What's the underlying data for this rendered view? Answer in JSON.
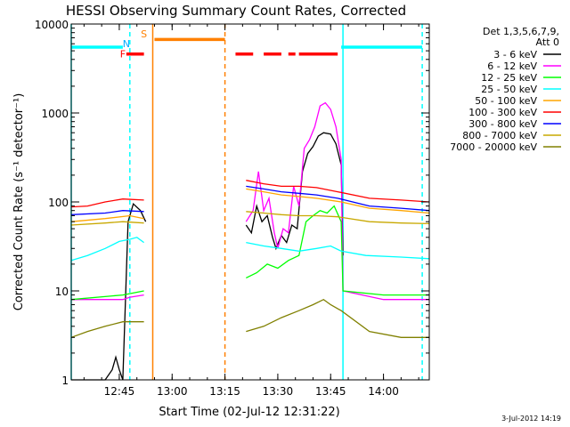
{
  "chart_data": {
    "type": "line",
    "title": "HESSI Observing Summary Count Rates, Corrected",
    "ylabel": "Corrected Count Rate (s⁻¹ detector⁻¹)",
    "xlabel": "Start Time (02-Jul-12 12:31:22)",
    "x_unit": "UT (02-Jul-2012)",
    "x_range": [
      "12:31:22",
      "14:13:00"
    ],
    "y_scale": "log",
    "ylim": [
      1,
      10000
    ],
    "x_ticks": [
      "12:45",
      "13:00",
      "13:15",
      "13:30",
      "13:45",
      "14:00"
    ],
    "y_ticks": [
      "1",
      "10",
      "100",
      "1000",
      "10000"
    ],
    "footer_date": "3-Jul-2012 14:19",
    "legend": {
      "header": [
        "Det 1,3,5,6,7,9,",
        "Att 0"
      ],
      "placement": "right"
    },
    "series": [
      {
        "name": "3 - 6 keV",
        "color": "#000000",
        "points": [
          [
            "12:31:22",
            1
          ],
          [
            "12:41:00",
            1
          ],
          [
            "12:43:00",
            1.3
          ],
          [
            "12:44:00",
            1.8
          ],
          [
            "12:45:00",
            1.3
          ],
          [
            "12:46:00",
            1
          ],
          [
            "12:47:30",
            60
          ],
          [
            "12:49:00",
            95
          ],
          [
            "12:51:00",
            80
          ],
          [
            "12:52:30",
            60
          ],
          [
            null,
            null
          ],
          [
            "13:21:00",
            55
          ],
          [
            "13:22:30",
            45
          ],
          [
            "13:24:00",
            90
          ],
          [
            "13:25:30",
            60
          ],
          [
            "13:27:00",
            70
          ],
          [
            "13:28:30",
            40
          ],
          [
            "13:29:30",
            30
          ],
          [
            "13:31:00",
            42
          ],
          [
            "13:32:30",
            35
          ],
          [
            "13:34:00",
            55
          ],
          [
            "13:35:30",
            50
          ],
          [
            "13:37:00",
            220
          ],
          [
            "13:38:30",
            350
          ],
          [
            "13:40:00",
            420
          ],
          [
            "13:41:30",
            550
          ],
          [
            "13:43:00",
            600
          ],
          [
            "13:45:00",
            580
          ],
          [
            "13:46:30",
            450
          ],
          [
            "13:48:00",
            260
          ],
          [
            "13:48:30",
            25
          ]
        ]
      },
      {
        "name": "6 - 12 keV",
        "color": "#ff00ff",
        "points": [
          [
            "12:31:22",
            8
          ],
          [
            "12:40:00",
            8
          ],
          [
            "12:46:00",
            8
          ],
          [
            "12:48:00",
            8.5
          ],
          [
            "12:52:00",
            9
          ],
          [
            null,
            null
          ],
          [
            "13:21:00",
            60
          ],
          [
            "13:23:00",
            80
          ],
          [
            "13:24:30",
            220
          ],
          [
            "13:26:00",
            80
          ],
          [
            "13:27:30",
            110
          ],
          [
            "13:29:00",
            45
          ],
          [
            "13:30:00",
            30
          ],
          [
            "13:31:30",
            50
          ],
          [
            "13:33:00",
            45
          ],
          [
            "13:34:30",
            150
          ],
          [
            "13:36:00",
            90
          ],
          [
            "13:37:30",
            400
          ],
          [
            "13:39:00",
            500
          ],
          [
            "13:40:30",
            700
          ],
          [
            "13:42:00",
            1200
          ],
          [
            "13:43:30",
            1300
          ],
          [
            "13:45:00",
            1100
          ],
          [
            "13:46:30",
            700
          ],
          [
            "13:48:00",
            300
          ],
          [
            "13:48:30",
            10
          ],
          [
            "14:00:00",
            8
          ],
          [
            "14:13:00",
            8
          ]
        ]
      },
      {
        "name": "12 - 25 keV",
        "color": "#00ff00",
        "points": [
          [
            "12:31:22",
            8
          ],
          [
            "12:46:00",
            9
          ],
          [
            "12:52:00",
            10
          ],
          [
            null,
            null
          ],
          [
            "13:21:00",
            14
          ],
          [
            "13:24:00",
            16
          ],
          [
            "13:27:00",
            20
          ],
          [
            "13:30:00",
            18
          ],
          [
            "13:33:00",
            22
          ],
          [
            "13:36:00",
            25
          ],
          [
            "13:38:00",
            60
          ],
          [
            "13:40:00",
            70
          ],
          [
            "13:42:00",
            80
          ],
          [
            "13:44:00",
            75
          ],
          [
            "13:46:00",
            90
          ],
          [
            "13:48:00",
            60
          ],
          [
            "13:48:30",
            10
          ],
          [
            "14:00:00",
            9
          ],
          [
            "14:13:00",
            9
          ]
        ]
      },
      {
        "name": "25 - 50 keV",
        "color": "#00ffff",
        "points": [
          [
            "12:31:22",
            22
          ],
          [
            "12:36:00",
            25
          ],
          [
            "12:41:00",
            30
          ],
          [
            "12:45:00",
            36
          ],
          [
            "12:48:00",
            38
          ],
          [
            "12:50:00",
            40
          ],
          [
            "12:52:00",
            35
          ],
          [
            null,
            null
          ],
          [
            "13:21:00",
            35
          ],
          [
            "13:26:00",
            32
          ],
          [
            "13:31:00",
            30
          ],
          [
            "13:36:00",
            28
          ],
          [
            "13:41:00",
            30
          ],
          [
            "13:45:00",
            32
          ],
          [
            "13:48:00",
            28
          ],
          [
            "13:55:00",
            25
          ],
          [
            "14:05:00",
            24
          ],
          [
            "14:13:00",
            23
          ]
        ]
      },
      {
        "name": "50 - 100 keV",
        "color": "#ffa500",
        "points": [
          [
            "12:31:22",
            60
          ],
          [
            "12:41:00",
            65
          ],
          [
            "12:48:00",
            70
          ],
          [
            "12:52:00",
            65
          ],
          [
            null,
            null
          ],
          [
            "13:21:00",
            140
          ],
          [
            "13:26:00",
            130
          ],
          [
            "13:31:00",
            120
          ],
          [
            "13:36:00",
            115
          ],
          [
            "13:41:00",
            110
          ],
          [
            "13:48:00",
            100
          ],
          [
            "13:56:00",
            85
          ],
          [
            "14:05:00",
            80
          ],
          [
            "14:13:00",
            75
          ]
        ]
      },
      {
        "name": "100 - 300 keV",
        "color": "#ff0000",
        "points": [
          [
            "12:31:22",
            88
          ],
          [
            "12:36:00",
            90
          ],
          [
            "12:41:00",
            100
          ],
          [
            "12:46:00",
            108
          ],
          [
            "12:52:00",
            105
          ],
          [
            null,
            null
          ],
          [
            "13:21:00",
            175
          ],
          [
            "13:26:00",
            160
          ],
          [
            "13:31:00",
            150
          ],
          [
            "13:36:00",
            150
          ],
          [
            "13:41:00",
            145
          ],
          [
            "13:47:00",
            130
          ],
          [
            "13:56:00",
            110
          ],
          [
            "14:05:00",
            105
          ],
          [
            "14:13:00",
            100
          ]
        ]
      },
      {
        "name": "300 - 800 keV",
        "color": "#0000ff",
        "points": [
          [
            "12:31:22",
            72
          ],
          [
            "12:41:00",
            75
          ],
          [
            "12:46:00",
            80
          ],
          [
            "12:52:00",
            78
          ],
          [
            null,
            null
          ],
          [
            "13:21:00",
            150
          ],
          [
            "13:26:00",
            140
          ],
          [
            "13:31:00",
            130
          ],
          [
            "13:36:00",
            125
          ],
          [
            "13:41:00",
            120
          ],
          [
            "13:47:00",
            110
          ],
          [
            "13:56:00",
            90
          ],
          [
            "14:05:00",
            85
          ],
          [
            "14:13:00",
            80
          ]
        ]
      },
      {
        "name": "800 - 7000 keV",
        "color": "#c8a800",
        "points": [
          [
            "12:31:22",
            55
          ],
          [
            "12:41:00",
            58
          ],
          [
            "12:46:00",
            60
          ],
          [
            "12:52:00",
            58
          ],
          [
            null,
            null
          ],
          [
            "13:21:00",
            78
          ],
          [
            "13:26:00",
            75
          ],
          [
            "13:31:00",
            72
          ],
          [
            "13:36:00",
            70
          ],
          [
            "13:41:00",
            70
          ],
          [
            "13:47:00",
            68
          ],
          [
            "13:56:00",
            60
          ],
          [
            "14:05:00",
            58
          ],
          [
            "14:13:00",
            57
          ]
        ]
      },
      {
        "name": "7000 - 20000 keV",
        "color": "#808000",
        "points": [
          [
            "12:31:22",
            3
          ],
          [
            "12:36:00",
            3.5
          ],
          [
            "12:41:00",
            4
          ],
          [
            "12:46:00",
            4.5
          ],
          [
            "12:52:00",
            4.5
          ],
          [
            null,
            null
          ],
          [
            "13:21:00",
            3.5
          ],
          [
            "13:26:00",
            4
          ],
          [
            "13:31:00",
            5
          ],
          [
            "13:36:00",
            6
          ],
          [
            "13:40:00",
            7
          ],
          [
            "13:43:00",
            8
          ],
          [
            "13:45:00",
            7
          ],
          [
            "13:48:00",
            6
          ],
          [
            "13:56:00",
            3.5
          ],
          [
            "14:05:00",
            3
          ],
          [
            "14:13:00",
            3
          ]
        ]
      }
    ],
    "bars": [
      {
        "label": "",
        "color": "#00ffff",
        "y": 5500,
        "segments": [
          [
            "12:31:22",
            "12:46:00"
          ],
          [
            "13:48:00",
            "14:11:00"
          ]
        ]
      },
      {
        "label": "F",
        "color": "#ff0000",
        "y": 4600,
        "segments": [
          [
            "12:47:00",
            "12:52:00"
          ],
          [
            "13:18:00",
            "13:23:00"
          ],
          [
            "13:26:00",
            "13:31:00"
          ],
          [
            "13:33:00",
            "13:35:00"
          ],
          [
            "13:36:00",
            "13:47:00"
          ]
        ]
      },
      {
        "label": "S",
        "color": "#ff8000",
        "y": 6700,
        "segments": [
          [
            "12:55:00",
            "13:15:00"
          ]
        ]
      }
    ],
    "bar_labels": [
      {
        "text": "N",
        "color": "#00aaff",
        "x": "12:47:00",
        "y": 6000
      },
      {
        "text": "S",
        "color": "#ff8000",
        "x": "12:52:00",
        "y": 7800
      },
      {
        "text": "F",
        "color": "#ff0000",
        "x": "12:46:00",
        "y": 4600
      }
    ],
    "vlines": [
      {
        "time": "12:31:22",
        "color": "#00ffff",
        "style": "solid"
      },
      {
        "time": "12:48:00",
        "color": "#00ffff",
        "style": "dashed"
      },
      {
        "time": "12:54:30",
        "color": "#ff8000",
        "style": "solid"
      },
      {
        "time": "13:15:00",
        "color": "#ff8000",
        "style": "dashed"
      },
      {
        "time": "13:48:30",
        "color": "#00ffff",
        "style": "solid"
      },
      {
        "time": "14:11:00",
        "color": "#00ffff",
        "style": "dashed"
      }
    ]
  }
}
